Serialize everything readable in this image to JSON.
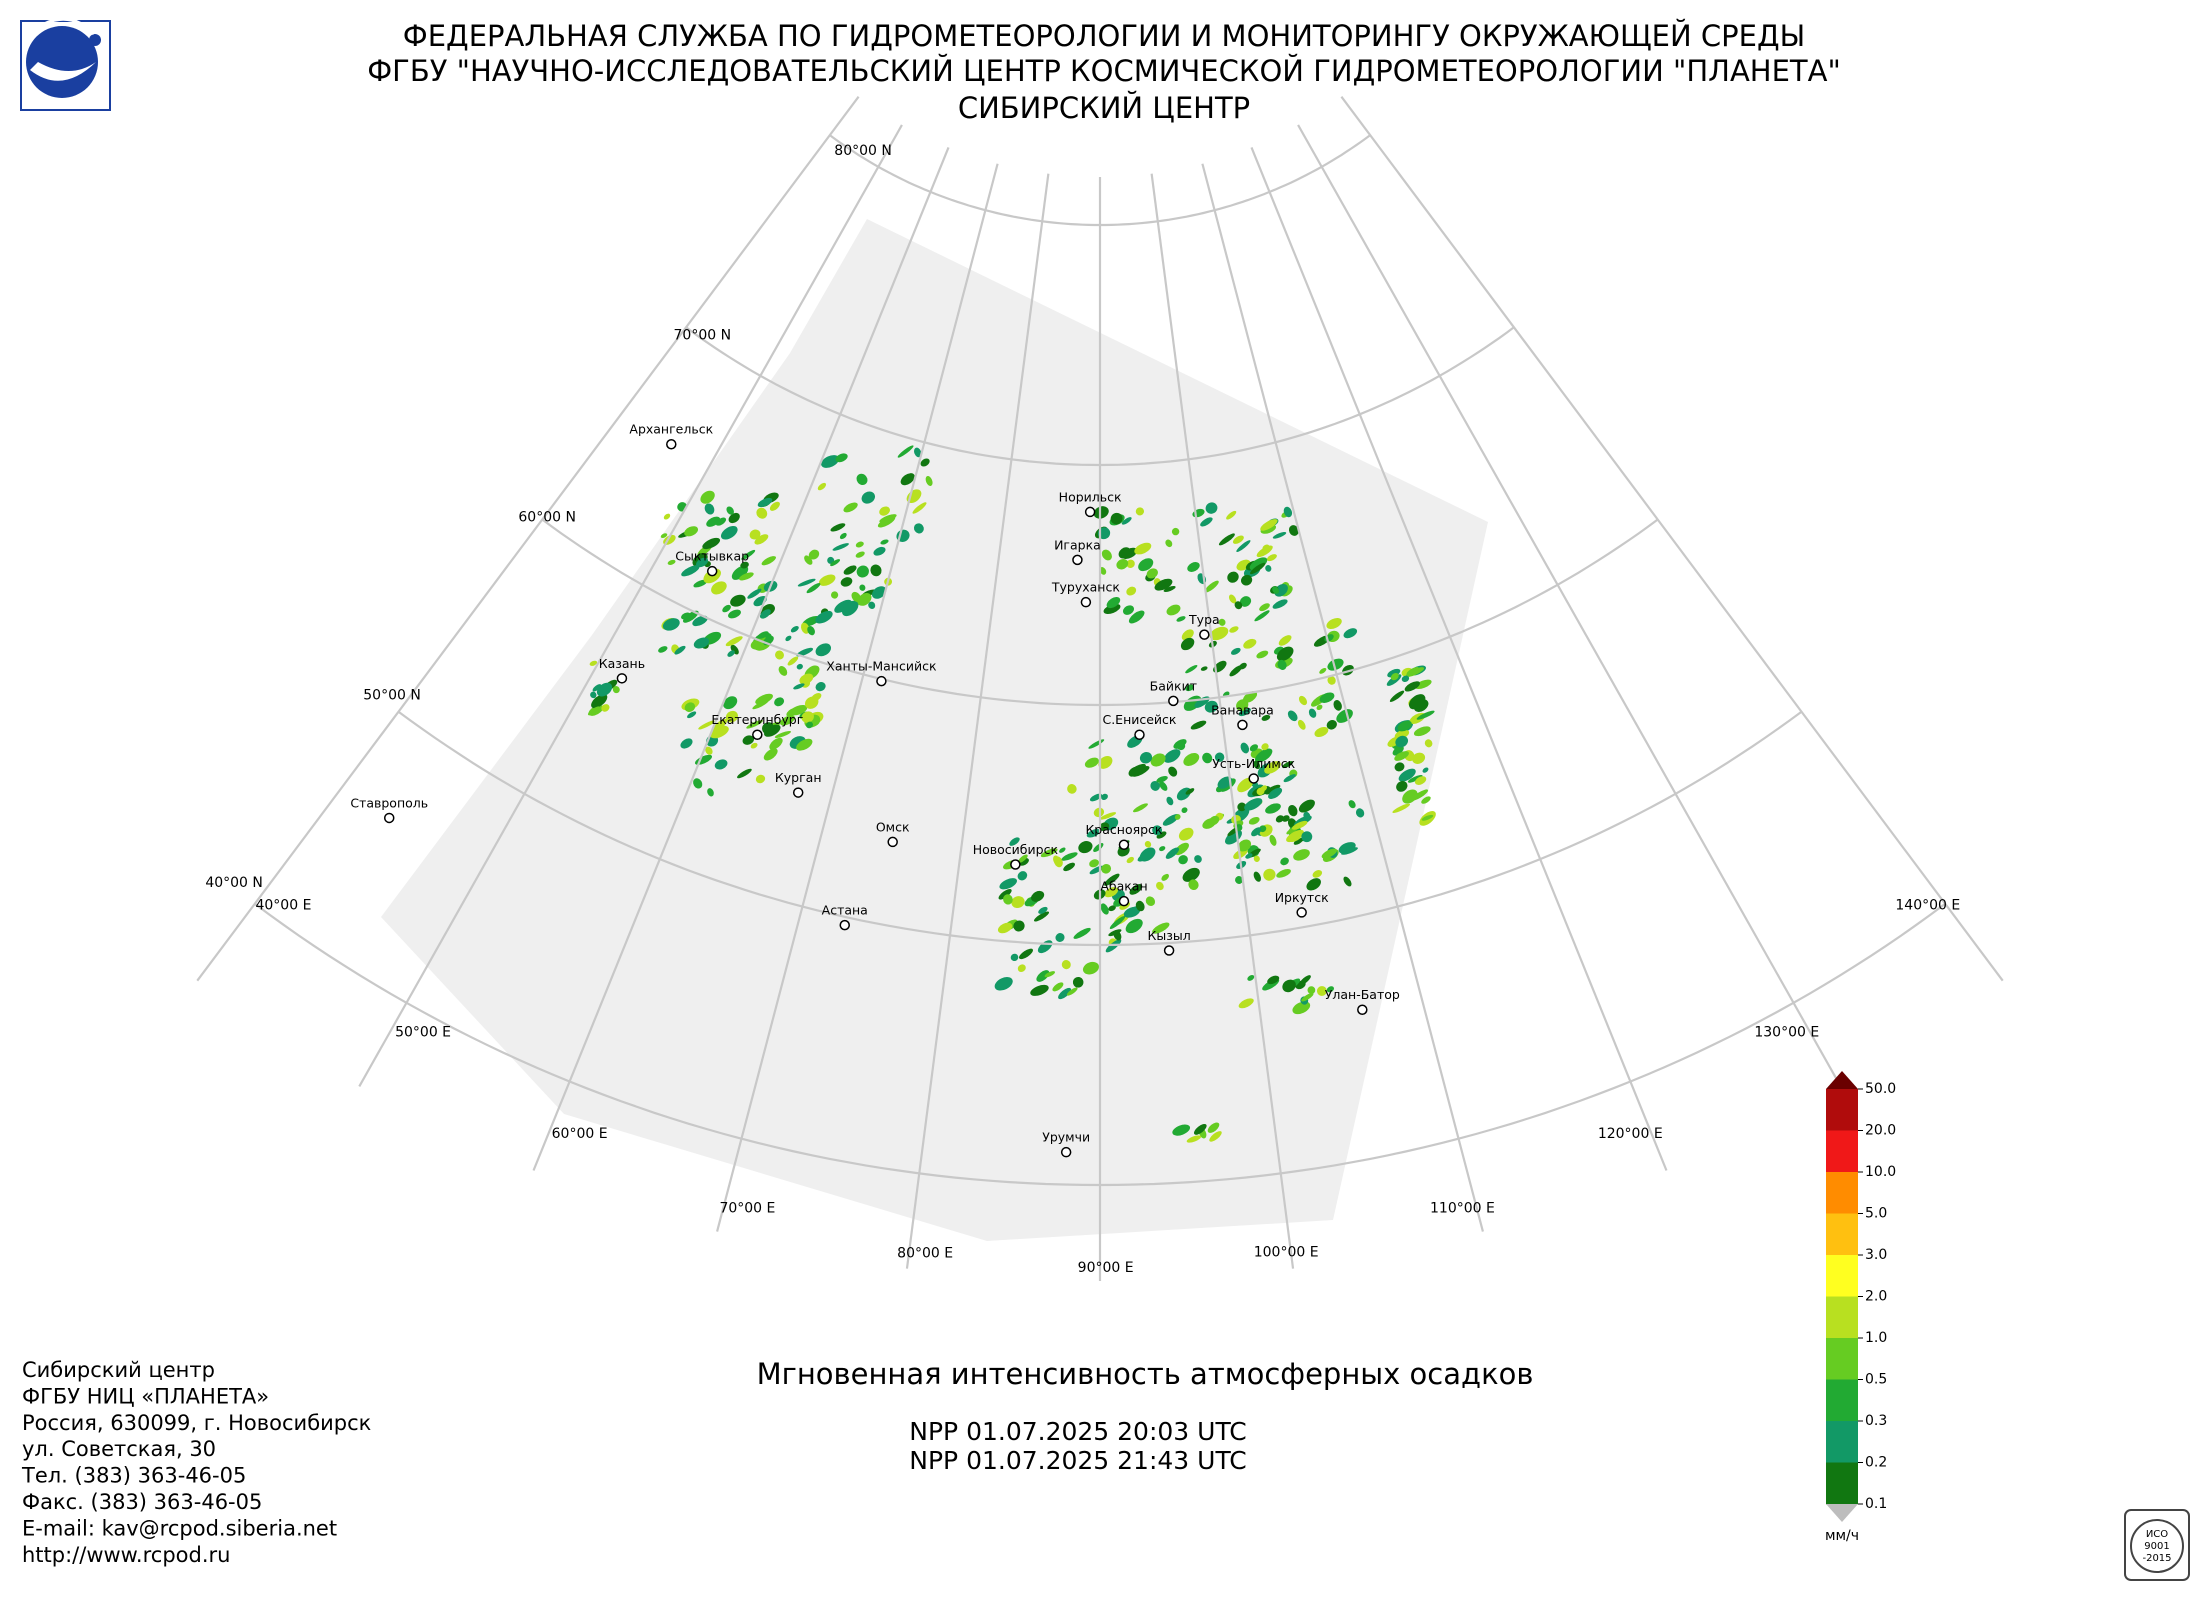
{
  "header": {
    "lines": [
      "ФЕДЕРАЛЬНАЯ СЛУЖБА ПО ГИДРОМЕТЕОРОЛОГИИ И МОНИТОРИНГУ ОКРУЖАЮЩЕЙ СРЕДЫ",
      "ФГБУ \"НАУЧНО-ИССЛЕДОВАТЕЛЬСКИЙ ЦЕНТР КОСМИЧЕСКОЙ ГИДРОМЕТЕОРОЛОГИИ \"ПЛАНЕТА\"",
      "СИБИРСКИЙ ЦЕНТР"
    ]
  },
  "map": {
    "lat_labels": [
      "80°00 N",
      "70°00 N",
      "60°00 N",
      "50°00 N",
      "40°00 N"
    ],
    "lon_labels": [
      "40°00 E",
      "50°00 E",
      "60°00 E",
      "70°00 E",
      "80°00 E",
      "90°00 E",
      "100°00 E",
      "110°00 E",
      "120°00 E",
      "130°00 E",
      "140°00 E"
    ],
    "cities": [
      "Архангельск",
      "Сыктывкар",
      "Казань",
      "Екатеринбург",
      "Курган",
      "Ханты-Мансийск",
      "Омск",
      "Астана",
      "Новосибирск",
      "Норильск",
      "Игарка",
      "Туруханск",
      "Тура",
      "Байкит",
      "С.Енисейск",
      "Ванавара",
      "Усть-Илимск",
      "Красноярск",
      "Абакан",
      "Иркутск",
      "Кызыл",
      "Улан-Батор",
      "Урумчи",
      "Ставрополь"
    ]
  },
  "legend": {
    "labels": [
      "50.0",
      "20.0",
      "10.0",
      "5.0",
      "3.0",
      "2.0",
      "1.0",
      "0.5",
      "0.3",
      "0.2",
      "0.1"
    ],
    "colors": [
      "#b00c0c",
      "#f01818",
      "#ff8c00",
      "#ffc010",
      "#ffff20",
      "#b8e020",
      "#66cc22",
      "#22aa33",
      "#129966",
      "#117711"
    ],
    "over_color": "#6a0000",
    "under_color": "#bdbdbd",
    "unit": "мм/ч"
  },
  "product": {
    "title": "Мгновенная интенсивность атмосферных осадков",
    "passes": [
      "NPP 01.07.2025  20:03 UTC",
      "NPP 01.07.2025  21:43 UTC"
    ]
  },
  "contact": {
    "lines": [
      "Сибирский центр",
      "ФГБУ НИЦ «ПЛАНЕТА»",
      "Россия, 630099, г. Новосибирск",
      "ул. Советская, 30",
      "Тел. (383) 363-46-05",
      "Факс. (383) 363-46-05",
      "E-mail: kav@rcpod.siberia.net",
      "http://www.rcpod.ru"
    ]
  },
  "badge": {
    "lines": [
      "ИСО",
      "9001",
      "-2015"
    ]
  }
}
